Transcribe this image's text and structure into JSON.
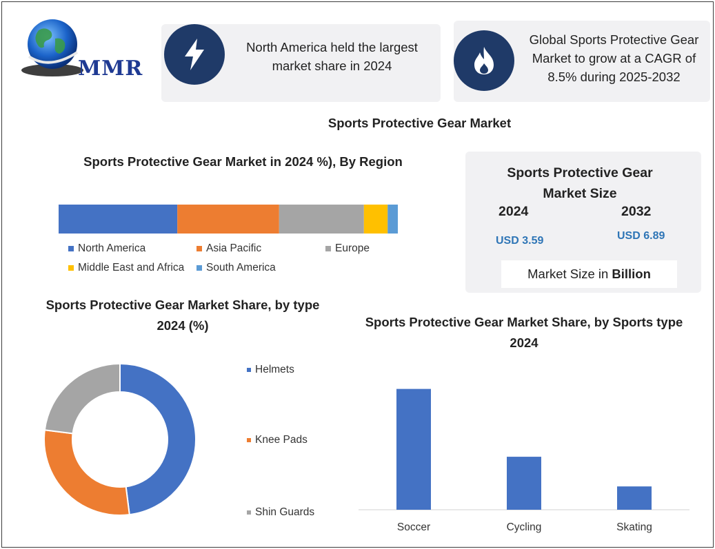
{
  "brand": {
    "logo_text": "MMR"
  },
  "cards": [
    {
      "icon": "lightning-icon",
      "text": "North America held the largest market share in 2024"
    },
    {
      "icon": "flame-icon",
      "text": "Global Sports Protective Gear Market to grow at a CAGR of 8.5% during 2025-2032"
    }
  ],
  "main_title": "Sports Protective Gear Market",
  "market_size": {
    "title": "Sports Protective Gear Market Size",
    "year_1": "2024",
    "value_1": "USD 3.59",
    "year_2": "2032",
    "value_2": "USD 6.89",
    "note_prefix": "Market Size in",
    "note_unit": "Billion"
  },
  "colors": {
    "blue": "#4472c4",
    "orange": "#ed7d31",
    "gray": "#a5a5a5",
    "yellow": "#ffc000",
    "lightblue": "#5b9bd5",
    "navy": "#1f3a68"
  },
  "chart_data": [
    {
      "type": "bar",
      "orientation": "horizontal-stacked",
      "title": "Sports Protective Gear Market in 2024 %), By Region",
      "series": [
        {
          "name": "North America",
          "value": 35,
          "color": "#4472c4"
        },
        {
          "name": "Asia Pacific",
          "value": 30,
          "color": "#ed7d31"
        },
        {
          "name": "Europe",
          "value": 25,
          "color": "#a5a5a5"
        },
        {
          "name": "Middle East and Africa",
          "value": 7,
          "color": "#ffc000"
        },
        {
          "name": "South America",
          "value": 3,
          "color": "#5b9bd5"
        }
      ]
    },
    {
      "type": "pie",
      "style": "donut",
      "title": "Sports Protective Gear Market Share, by type 2024 (%)",
      "slices": [
        {
          "label": "Helmets",
          "value": 48,
          "color": "#4472c4"
        },
        {
          "label": "Knee Pads",
          "value": 29,
          "color": "#ed7d31"
        },
        {
          "label": "Shin Guards",
          "value": 23,
          "color": "#a5a5a5"
        }
      ]
    },
    {
      "type": "bar",
      "title": "Sports Protective Gear Market Share, by Sports type 2024",
      "categories": [
        "Soccer",
        "Cycling",
        "Skating"
      ],
      "values": [
        57,
        25,
        11
      ],
      "ylim": [
        0,
        65
      ],
      "color": "#4472c4"
    }
  ]
}
